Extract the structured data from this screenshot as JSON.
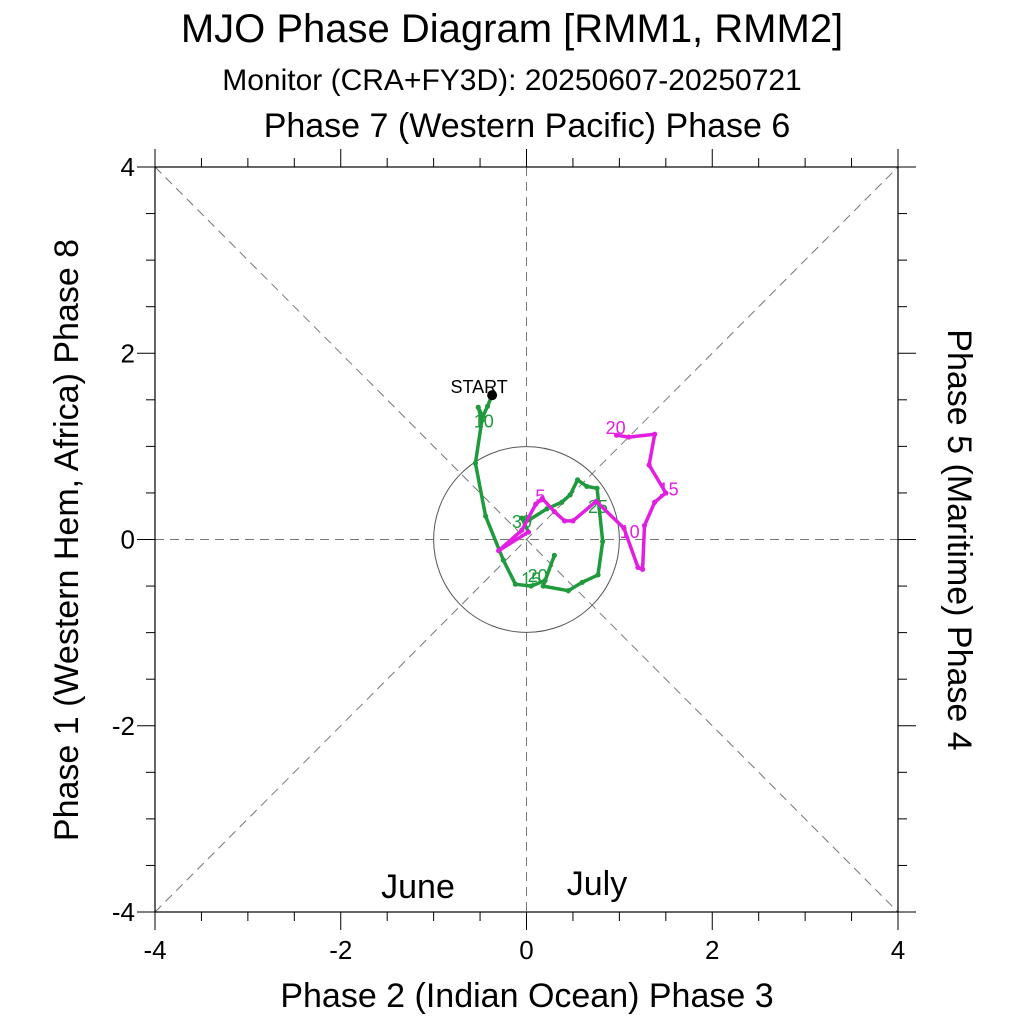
{
  "chart_data": {
    "type": "line",
    "title": "MJO Phase Diagram [RMM1, RMM2]",
    "subtitle": "Monitor (CRA+FY3D): 20250607-20250721",
    "top_label": "Phase 7 (Western Pacific) Phase 6",
    "xlabel": "Phase 2 (Indian Ocean) Phase 3",
    "ylabel_left": "Phase 1 (Western Hem, Africa) Phase 8",
    "ylabel_right": "Phase 5 (Maritime) Phase 4",
    "xlim": [
      -4,
      4
    ],
    "ylim": [
      -4,
      4
    ],
    "x_ticks": [
      -4,
      -2,
      0,
      2,
      4
    ],
    "y_ticks": [
      -4,
      -2,
      0,
      2,
      4
    ],
    "x_tick_labels": [
      "-4",
      "-2",
      "0",
      "2",
      "4"
    ],
    "y_tick_labels": [
      "-4",
      "-2",
      "0",
      "2",
      "4"
    ],
    "unit_circle_radius": 1,
    "start_label": "START",
    "start_point": [
      -0.37,
      1.55
    ],
    "colors": {
      "June": "#1f9a3c",
      "July": "#e11ee1",
      "axes": "#000000",
      "guides": "#777777"
    },
    "legend": [
      {
        "label": "June",
        "color": "#1f9a3c"
      },
      {
        "label": "July",
        "color": "#e11ee1"
      }
    ],
    "series": [
      {
        "name": "June",
        "color": "#1f9a3c",
        "points": [
          [
            -0.37,
            1.55
          ],
          [
            -0.42,
            1.43
          ],
          [
            -0.47,
            1.32
          ],
          [
            -0.52,
            1.42
          ],
          [
            -0.48,
            1.28
          ],
          [
            -0.55,
            0.82
          ],
          [
            -0.44,
            0.25
          ],
          [
            -0.25,
            -0.22
          ],
          [
            -0.12,
            -0.48
          ],
          [
            0.05,
            -0.5
          ],
          [
            0.2,
            -0.44
          ],
          [
            0.3,
            -0.17
          ],
          [
            0.18,
            -0.5
          ],
          [
            0.45,
            -0.55
          ],
          [
            0.6,
            -0.46
          ],
          [
            0.77,
            -0.38
          ],
          [
            0.82,
            -0.02
          ],
          [
            0.76,
            0.55
          ],
          [
            0.65,
            0.57
          ],
          [
            0.55,
            0.64
          ],
          [
            0.47,
            0.48
          ],
          [
            0.38,
            0.4
          ],
          [
            0.22,
            0.33
          ],
          [
            0.03,
            0.21
          ],
          [
            -0.05,
            0.23
          ],
          [
            0.02,
            0.08
          ]
        ],
        "labels": [
          {
            "text": "10",
            "point": [
              -0.46,
              1.28
            ]
          },
          {
            "text": "20",
            "point": [
              0.12,
              -0.38
            ]
          },
          {
            "text": "25",
            "point": [
              0.77,
              0.36
            ]
          },
          {
            "text": "30",
            "point": [
              -0.05,
              0.2
            ]
          },
          {
            "text": "15",
            "point": [
              0.05,
              -0.42
            ]
          }
        ]
      },
      {
        "name": "July",
        "color": "#e11ee1",
        "points": [
          [
            0.02,
            0.08
          ],
          [
            -0.3,
            -0.12
          ],
          [
            -0.05,
            0.1
          ],
          [
            0.1,
            0.38
          ],
          [
            0.17,
            0.44
          ],
          [
            0.3,
            0.3
          ],
          [
            0.41,
            0.2
          ],
          [
            0.5,
            0.2
          ],
          [
            0.75,
            0.41
          ],
          [
            1.05,
            0.12
          ],
          [
            1.2,
            -0.3
          ],
          [
            1.25,
            -0.32
          ],
          [
            1.27,
            0.15
          ],
          [
            1.38,
            0.4
          ],
          [
            1.5,
            0.5
          ],
          [
            1.32,
            0.8
          ],
          [
            1.38,
            1.13
          ],
          [
            1.1,
            1.1
          ],
          [
            0.97,
            1.12
          ]
        ],
        "labels": [
          {
            "text": "5",
            "point": [
              0.15,
              0.47
            ]
          },
          {
            "text": "10",
            "point": [
              1.11,
              0.09
            ]
          },
          {
            "text": "15",
            "point": [
              1.53,
              0.55
            ]
          },
          {
            "text": "20",
            "point": [
              0.96,
              1.21
            ]
          }
        ]
      }
    ]
  }
}
